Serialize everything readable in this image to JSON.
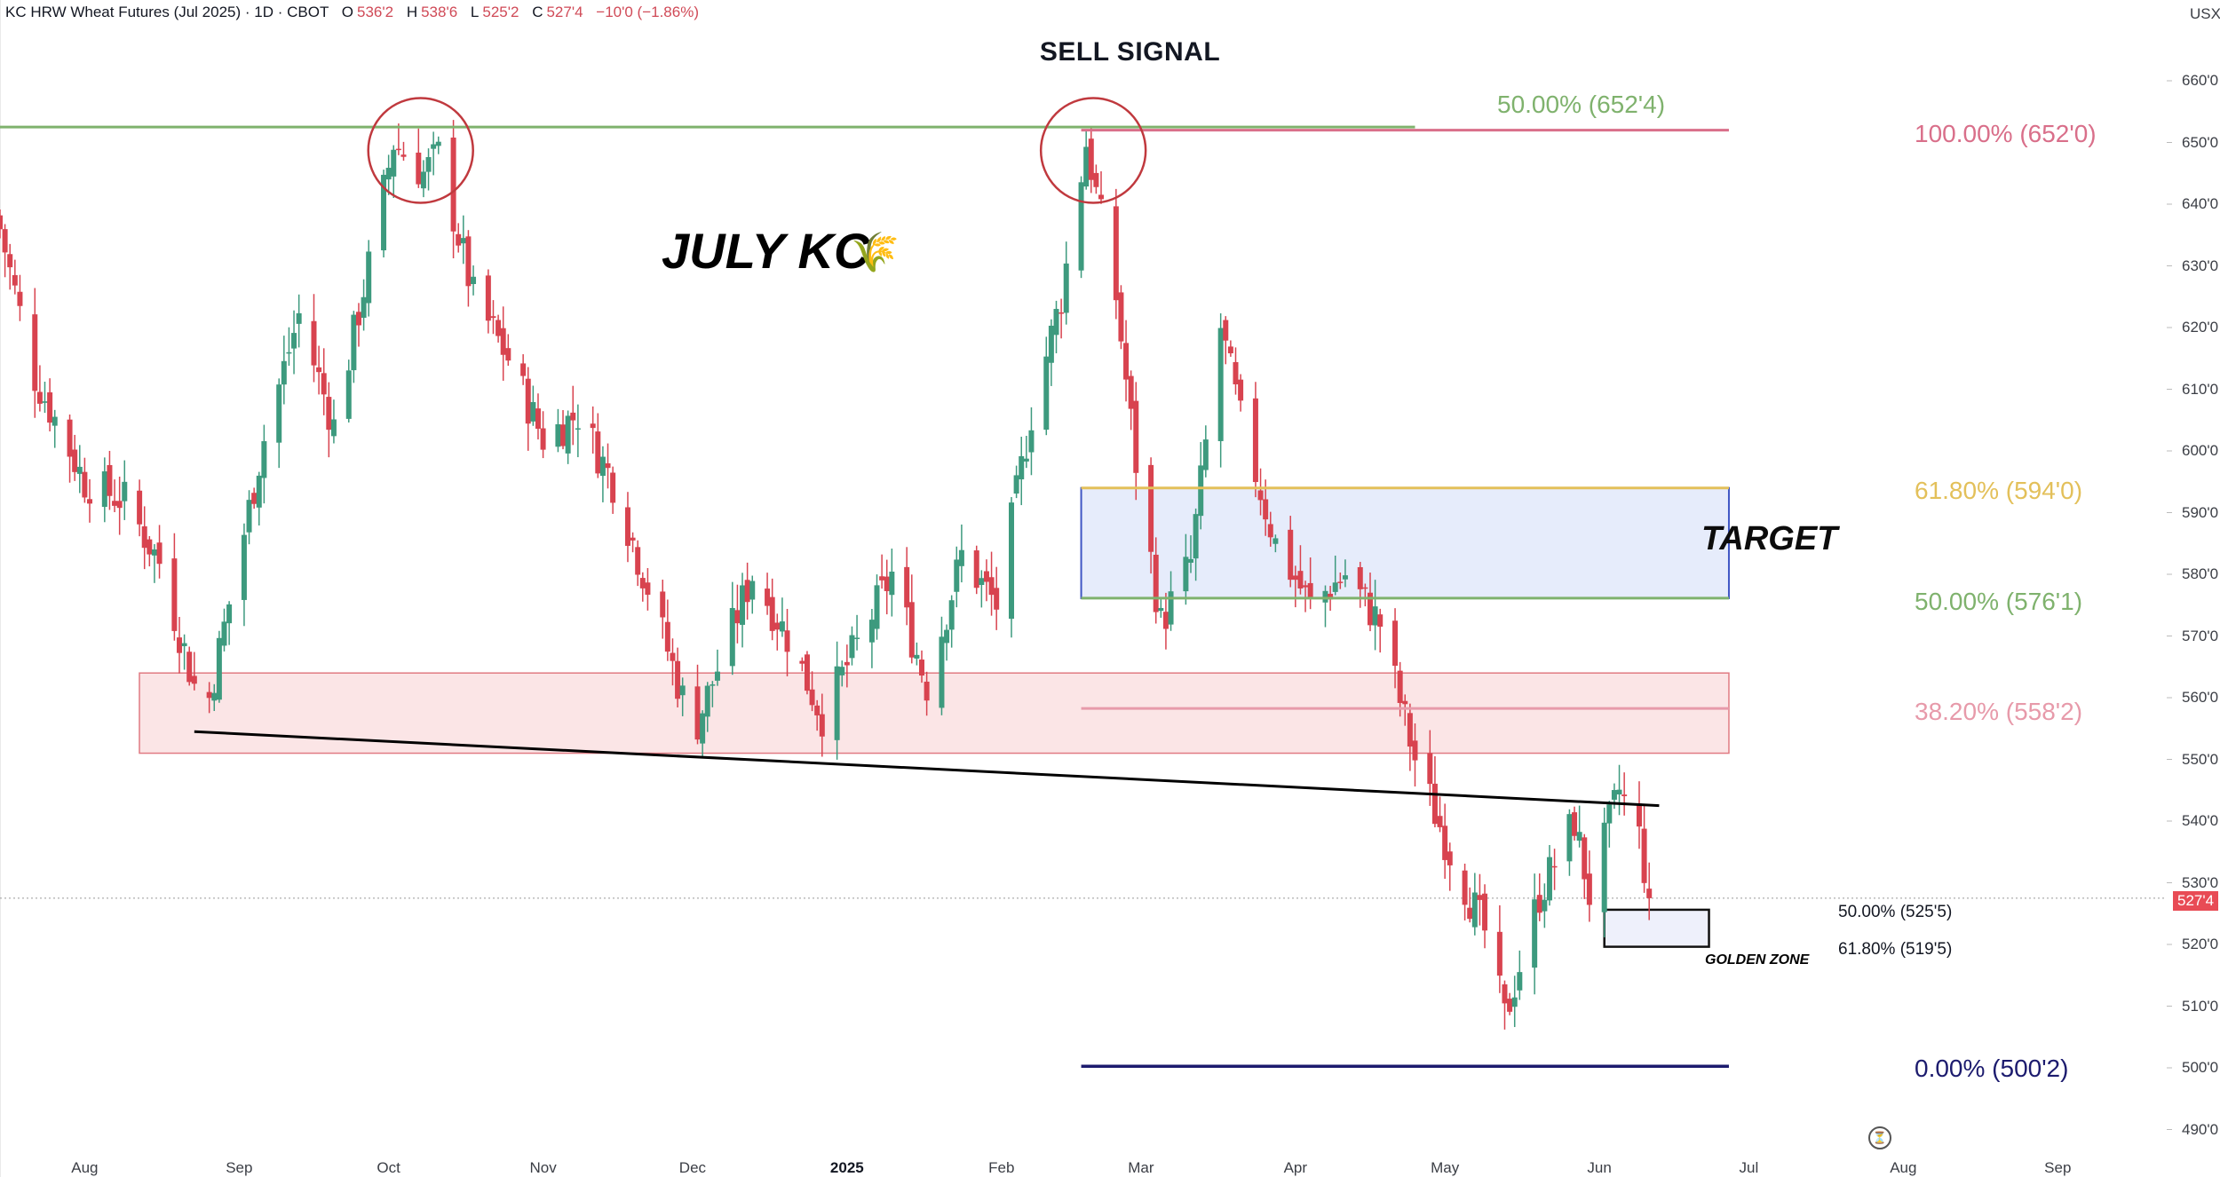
{
  "header": {
    "symbol": "KC HRW Wheat Futures (Jul 2025) · 1D · CBOT",
    "open_label": "O",
    "open": "536'2",
    "high_label": "H",
    "high": "538'6",
    "low_label": "L",
    "low": "525'2",
    "close_label": "C",
    "close": "527'4",
    "change": "−10'0 (−1.86%)"
  },
  "annotations": {
    "title": "SELL SIGNAL",
    "chart_label": "JULY KC",
    "wheat_emoji": "🌾",
    "target_label": "TARGET",
    "golden_zone_label": "GOLDEN ZONE"
  },
  "fib_levels": {
    "green_top": "50.00% (652'4)",
    "pink_top": "100.00% (652'0)",
    "gold": "61.80% (594'0)",
    "green_mid": "50.00% (576'1)",
    "pink_mid": "38.20% (558'2)",
    "gz_top": "50.00% (525'5)",
    "gz_bottom": "61.80% (519'5)",
    "bottom": "0.00% (500'2)"
  },
  "axis": {
    "unit": "USX",
    "last_price_badge": "527'4",
    "y_ticks": [
      "660'0",
      "650'0",
      "640'0",
      "630'0",
      "620'0",
      "610'0",
      "600'0",
      "590'0",
      "580'0",
      "570'0",
      "560'0",
      "550'0",
      "540'0",
      "530'0",
      "520'0",
      "510'0",
      "500'0",
      "490'0"
    ],
    "x_ticks": [
      "Aug",
      "Sep",
      "Oct",
      "Nov",
      "Dec",
      "2025",
      "Feb",
      "Mar",
      "Apr",
      "May",
      "Jun",
      "Jul",
      "Aug",
      "Sep"
    ]
  },
  "colors": {
    "up": "#3d9a7e",
    "down": "#d8434f",
    "green_line": "#7fb26d",
    "pink_line": "#d96f8a",
    "gold_line": "#e3c05a",
    "navy_line": "#1c1b6e",
    "target_box": "#e6ecfb",
    "resistance_box": "#fbe5e6"
  },
  "chart_data": {
    "type": "candlestick",
    "title": "SELL SIGNAL",
    "x_range": [
      "2024-07-15",
      "2025-09-30"
    ],
    "ylim": [
      487,
      663
    ],
    "y_scale": "linear",
    "last_close": 527.5,
    "anchors": [
      {
        "date": "2024-07-15",
        "price": 636
      },
      {
        "date": "2024-07-22",
        "price": 612
      },
      {
        "date": "2024-08-01",
        "price": 595
      },
      {
        "date": "2024-08-09",
        "price": 592
      },
      {
        "date": "2024-08-16",
        "price": 582
      },
      {
        "date": "2024-08-23",
        "price": 562
      },
      {
        "date": "2024-08-26",
        "price": 560
      },
      {
        "date": "2024-09-06",
        "price": 602
      },
      {
        "date": "2024-09-13",
        "price": 622
      },
      {
        "date": "2024-09-20",
        "price": 604
      },
      {
        "date": "2024-09-27",
        "price": 630
      },
      {
        "date": "2024-10-02",
        "price": 650
      },
      {
        "date": "2024-10-08",
        "price": 645
      },
      {
        "date": "2024-10-11",
        "price": 648
      },
      {
        "date": "2024-10-18",
        "price": 625
      },
      {
        "date": "2024-10-25",
        "price": 615
      },
      {
        "date": "2024-11-01",
        "price": 602
      },
      {
        "date": "2024-11-08",
        "price": 606
      },
      {
        "date": "2024-11-15",
        "price": 595
      },
      {
        "date": "2024-11-22",
        "price": 578
      },
      {
        "date": "2024-11-29",
        "price": 560
      },
      {
        "date": "2024-12-02",
        "price": 556
      },
      {
        "date": "2024-12-13",
        "price": 580
      },
      {
        "date": "2024-12-20",
        "price": 570
      },
      {
        "date": "2024-12-27",
        "price": 557
      },
      {
        "date": "2025-01-10",
        "price": 580
      },
      {
        "date": "2025-01-17",
        "price": 562
      },
      {
        "date": "2025-01-24",
        "price": 583
      },
      {
        "date": "2025-01-31",
        "price": 575
      },
      {
        "date": "2025-02-07",
        "price": 606
      },
      {
        "date": "2025-02-13",
        "price": 625
      },
      {
        "date": "2025-02-18",
        "price": 650
      },
      {
        "date": "2025-02-24",
        "price": 625
      },
      {
        "date": "2025-02-28",
        "price": 598
      },
      {
        "date": "2025-03-05",
        "price": 572
      },
      {
        "date": "2025-03-11",
        "price": 582
      },
      {
        "date": "2025-03-17",
        "price": 620
      },
      {
        "date": "2025-03-21",
        "price": 605
      },
      {
        "date": "2025-03-28",
        "price": 585
      },
      {
        "date": "2025-04-04",
        "price": 575
      },
      {
        "date": "2025-04-11",
        "price": 580
      },
      {
        "date": "2025-04-18",
        "price": 572
      },
      {
        "date": "2025-04-25",
        "price": 550
      },
      {
        "date": "2025-05-02",
        "price": 535
      },
      {
        "date": "2025-05-09",
        "price": 522
      },
      {
        "date": "2025-05-13",
        "price": 508
      },
      {
        "date": "2025-05-20",
        "price": 528
      },
      {
        "date": "2025-05-27",
        "price": 540
      },
      {
        "date": "2025-05-30",
        "price": 528
      },
      {
        "date": "2025-06-05",
        "price": 545
      },
      {
        "date": "2025-06-09",
        "price": 537.5
      },
      {
        "date": "2025-06-11",
        "price": 527.5
      }
    ],
    "horizontal_levels": [
      {
        "label": "50.00% (652'4)",
        "price": 652.5,
        "from": "2024-07-15",
        "to": "2025-04-25",
        "color": "#7fb26d"
      },
      {
        "label": "100.00% (652'0)",
        "price": 652.0,
        "from": "2025-02-17",
        "to": "2025-06-27",
        "color": "#d96f8a"
      },
      {
        "label": "61.80% (594'0)",
        "price": 594.0,
        "from": "2025-02-17",
        "to": "2025-06-27",
        "color": "#e3c05a"
      },
      {
        "label": "50.00% (576'1)",
        "price": 576.125,
        "from": "2025-02-17",
        "to": "2025-06-27",
        "color": "#7fb26d"
      },
      {
        "label": "38.20% (558'2)",
        "price": 558.25,
        "from": "2025-02-17",
        "to": "2025-06-27",
        "color": "#e79aaa"
      },
      {
        "label": "0.00% (500'2)",
        "price": 500.25,
        "from": "2025-02-17",
        "to": "2025-06-27",
        "color": "#1c1b6e"
      }
    ],
    "zones": [
      {
        "name": "resistance",
        "from": "2024-07-15",
        "to": "2025-06-27",
        "price_low": 551,
        "price_high": 564
      },
      {
        "name": "TARGET",
        "from": "2025-02-17",
        "to": "2025-06-27",
        "price_low": 576.125,
        "price_high": 594.0
      },
      {
        "name": "GOLDEN ZONE",
        "from": "2025-06-02",
        "to": "2025-06-23",
        "price_low": 519.625,
        "price_high": 525.625
      }
    ],
    "trendline": {
      "from": {
        "date": "2024-08-23",
        "price": 554.5
      },
      "to": {
        "date": "2025-06-13",
        "price": 542.5
      }
    },
    "circles": [
      {
        "date": "2024-10-06",
        "price": 650
      },
      {
        "date": "2025-02-18",
        "price": 650
      }
    ]
  }
}
